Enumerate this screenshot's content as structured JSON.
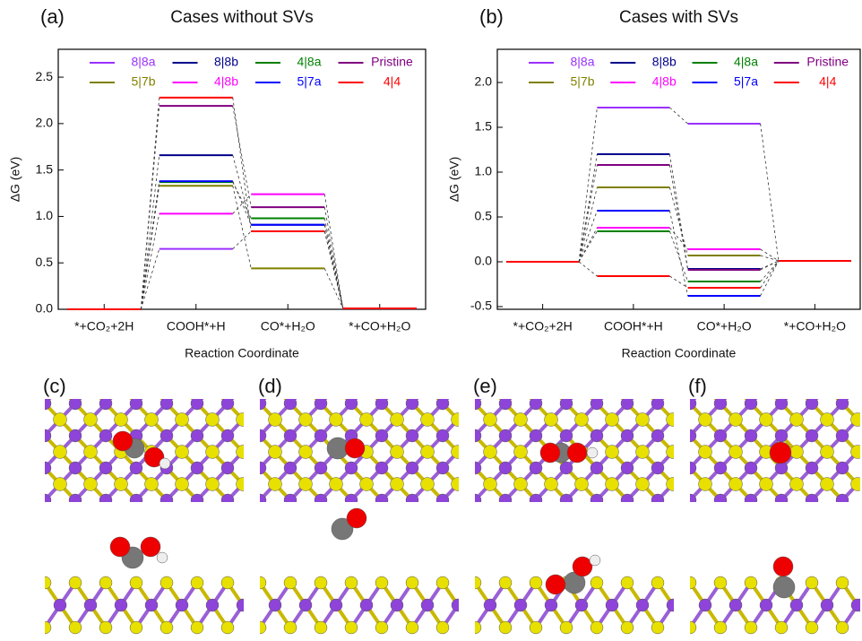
{
  "chart_data": [
    {
      "type": "energy-levels",
      "panel_label": "(a)",
      "title": "Cases without SVs",
      "y_label": "ΔG (eV)",
      "x_label": "Reaction Coordinate",
      "categories": [
        "*+CO₂+2H",
        "COOH*+H",
        "CO*+H₂O",
        "*+CO+H₂O"
      ],
      "ylim": [
        0,
        2.8
      ],
      "yticks": [
        {
          "value": 0,
          "label": "0.0"
        },
        0.5,
        {
          "value": 1,
          "label": "1.0"
        },
        1.5,
        {
          "value": 2,
          "label": "2.0"
        },
        2.5
      ],
      "series": [
        {
          "name": "8|8a",
          "color": "#9b30ff",
          "values": [
            0,
            0.65,
            0.84,
            0.01
          ]
        },
        {
          "name": "8|8b",
          "color": "#00008b",
          "values": [
            0,
            1.66,
            0.91,
            0.01
          ]
        },
        {
          "name": "4|8a",
          "color": "#008000",
          "values": [
            0,
            1.37,
            0.98,
            0.01
          ]
        },
        {
          "name": "Pristine",
          "color": "#800080",
          "values": [
            0,
            2.19,
            1.1,
            0.01
          ]
        },
        {
          "name": "5|7b",
          "color": "#808000",
          "values": [
            0,
            1.33,
            0.44,
            0.01
          ]
        },
        {
          "name": "4|8b",
          "color": "#ff00ff",
          "values": [
            0,
            1.03,
            1.24,
            0.01
          ]
        },
        {
          "name": "5|7a",
          "color": "#0000ff",
          "values": [
            0,
            1.38,
            0.91,
            0.01
          ]
        },
        {
          "name": "4|4",
          "color": "#ff0000",
          "values": [
            0,
            2.28,
            0.84,
            0.01
          ]
        }
      ]
    },
    {
      "type": "energy-levels",
      "panel_label": "(b)",
      "title": "Cases with SVs",
      "y_label": "ΔG (eV)",
      "x_label": "Reaction Coordinate",
      "categories": [
        "*+CO₂+2H",
        "COOH*+H",
        "CO*+H₂O",
        "*+CO+H₂O"
      ],
      "ylim": [
        -0.53,
        2.37
      ],
      "yticks": [
        -0.5,
        {
          "value": 0,
          "label": "0.0"
        },
        0.5,
        {
          "value": 1,
          "label": "1.0"
        },
        1.5,
        {
          "value": 2,
          "label": "2.0"
        }
      ],
      "series": [
        {
          "name": "8|8a",
          "color": "#9b30ff",
          "values": [
            0,
            1.72,
            1.54,
            0.01
          ]
        },
        {
          "name": "8|8b",
          "color": "#00008b",
          "values": [
            0,
            1.2,
            -0.08,
            0.01
          ]
        },
        {
          "name": "4|8a",
          "color": "#008000",
          "values": [
            0,
            0.34,
            -0.22,
            0.01
          ]
        },
        {
          "name": "Pristine",
          "color": "#800080",
          "values": [
            0,
            1.08,
            -0.09,
            0.01
          ]
        },
        {
          "name": "5|7b",
          "color": "#808000",
          "values": [
            0,
            0.83,
            0.07,
            0.01
          ]
        },
        {
          "name": "4|8b",
          "color": "#ff00ff",
          "values": [
            0,
            0.38,
            0.14,
            0.01
          ]
        },
        {
          "name": "5|7a",
          "color": "#0000ff",
          "values": [
            0,
            0.57,
            -0.38,
            0.01
          ]
        },
        {
          "name": "4|4",
          "color": "#ff0000",
          "values": [
            0,
            -0.16,
            -0.29,
            0.01
          ]
        }
      ]
    }
  ],
  "structure_labels": [
    "(c)",
    "(d)",
    "(e)",
    "(f)"
  ]
}
